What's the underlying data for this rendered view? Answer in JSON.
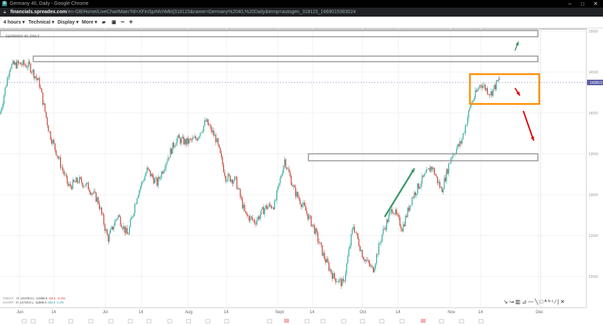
{
  "window": {
    "title": "Germany 40, Daily - Google Chrome",
    "url_domain": "financials.spreadex.com",
    "url_path": "/en-GB/Home/LiveChartMain?id=XFinSprMchMkt|318115&name=Germany%2040,%20Daily&temp=autogen_318115_1669015383024"
  },
  "toolbar": {
    "interval": "4 hours ▾",
    "technical": "Technical ▾",
    "display": "Display ▾",
    "more": "More ▾"
  },
  "chart_title": "GERMANY 40, DAILY",
  "current_price": "14383.5",
  "stats": {
    "today_label": "TODAY:",
    "today_h": "H: 14478.0",
    "today_l": "L: 14366.5",
    "today_chg": "-53.5",
    "today_pct": "-0.4%",
    "chart_label": "CHART:",
    "chart_h": "H: 14719.8",
    "chart_l": "L: 11809.0",
    "chart_chg": "338.4",
    "chart_pct": "2.4%"
  },
  "colors": {
    "up": "#26a69a",
    "down": "#c0392b",
    "highlight_box": "#ff8c00",
    "green_arrow": "#3a9a6a",
    "red_arrow": "#e00000",
    "price_tag": "#5b5ea6"
  },
  "chart_data": {
    "type": "candlestick",
    "ylim": [
      11700,
      15050
    ],
    "y_ticks": [
      "15000",
      "14500",
      "14000",
      "13500",
      "13000",
      "12500",
      "12000"
    ],
    "x_ticks": [
      "Jun",
      "14",
      "Jul",
      "14",
      "Aug",
      "14",
      "Sept",
      "14",
      "Oct",
      "14",
      "Nov",
      "14",
      "Dec"
    ],
    "approx_path": [
      13983,
      14576,
      14600,
      14576,
      14364,
      13771,
      13432,
      13093,
      13178,
      13093,
      12924,
      12458,
      12754,
      12500,
      13008,
      13305,
      13136,
      13432,
      13686,
      13640,
      13686,
      13898,
      13686,
      13220,
      13178,
      12754,
      12670,
      12840,
      12880,
      13432,
      13050,
      12840,
      12590,
      12246,
      11991,
      11907,
      12627,
      12246,
      12077,
      12540,
      12840,
      12590,
      12966,
      13178,
      13347,
      13050,
      13474,
      13644,
      14110,
      14364,
      14237,
      14432
    ],
    "levels": [
      15000,
      14690,
      13480
    ],
    "highlight_range": [
      14380,
      14740
    ]
  },
  "tools_icons": [
    "pointer-icon",
    "curve-icon",
    "fib-icon",
    "fan-icon",
    "hline-icon",
    "trendline-icon",
    "rectangle-icon",
    "text-icon",
    "pen-icon",
    "vline-icon",
    "close-icon"
  ]
}
